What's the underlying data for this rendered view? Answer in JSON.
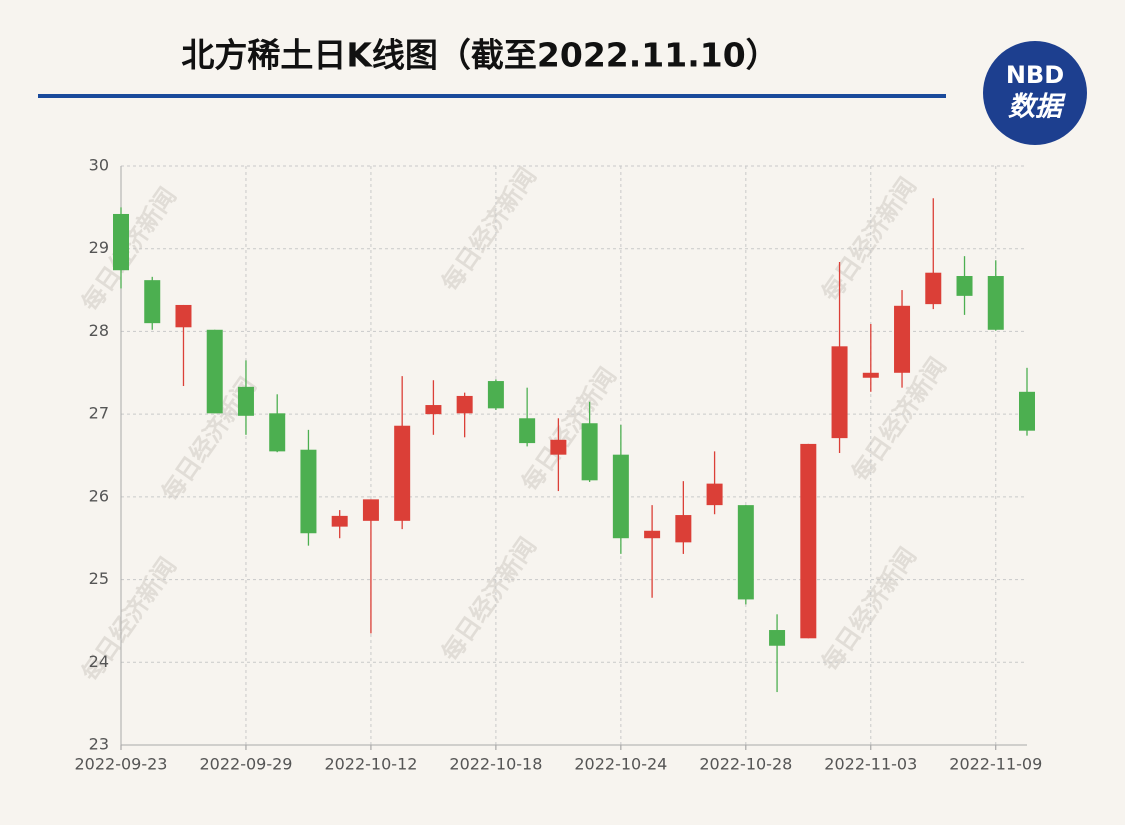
{
  "chart_data": {
    "type": "candlestick",
    "title": "北方稀土日K线图（截至2022.11.10）",
    "logo": {
      "top": "NBD",
      "bottom": "数据"
    },
    "watermark": "每日经济新闻",
    "categories": [
      "2022-09-23",
      null,
      null,
      null,
      "2022-09-29",
      null,
      null,
      null,
      "2022-10-12",
      null,
      null,
      null,
      "2022-10-18",
      null,
      null,
      null,
      "2022-10-24",
      null,
      null,
      null,
      "2022-10-28",
      null,
      null,
      null,
      "2022-11-03",
      null,
      null,
      null,
      "2022-11-09",
      null
    ],
    "open": [
      29.42,
      28.62,
      28.05,
      28.02,
      27.33,
      27.01,
      26.57,
      25.64,
      25.71,
      25.71,
      27.0,
      27.01,
      27.4,
      26.95,
      26.51,
      26.89,
      26.51,
      25.5,
      25.45,
      25.9,
      25.9,
      24.39,
      24.29,
      26.71,
      27.44,
      27.5,
      28.33,
      28.67,
      28.67,
      27.27
    ],
    "high": [
      29.5,
      28.66,
      28.32,
      28.02,
      27.65,
      27.24,
      26.81,
      25.84,
      25.97,
      27.46,
      27.41,
      27.26,
      27.42,
      27.32,
      26.95,
      27.15,
      26.87,
      25.9,
      26.19,
      26.55,
      25.9,
      24.58,
      26.64,
      28.84,
      28.09,
      28.5,
      29.61,
      28.91,
      28.86,
      27.56
    ],
    "low": [
      28.52,
      28.02,
      27.34,
      27.01,
      26.75,
      26.54,
      25.41,
      25.5,
      24.35,
      25.61,
      26.75,
      26.72,
      27.05,
      26.61,
      26.07,
      26.18,
      25.31,
      24.78,
      25.31,
      25.79,
      24.7,
      23.64,
      24.29,
      26.53,
      27.27,
      27.32,
      28.27,
      28.2,
      28.01,
      26.74
    ],
    "close": [
      28.74,
      28.1,
      28.32,
      27.01,
      26.98,
      26.55,
      25.56,
      25.77,
      25.97,
      26.86,
      27.11,
      27.22,
      27.07,
      26.65,
      26.69,
      26.2,
      25.5,
      25.59,
      25.78,
      26.16,
      24.76,
      24.2,
      26.64,
      27.82,
      27.5,
      28.31,
      28.71,
      28.43,
      28.02,
      26.8
    ],
    "up_color": "#db3f37",
    "down_color": "#4caf50",
    "ylim": [
      23,
      30
    ],
    "yticks": [
      23,
      24,
      25,
      26,
      27,
      28,
      29,
      30
    ],
    "grid": true
  }
}
